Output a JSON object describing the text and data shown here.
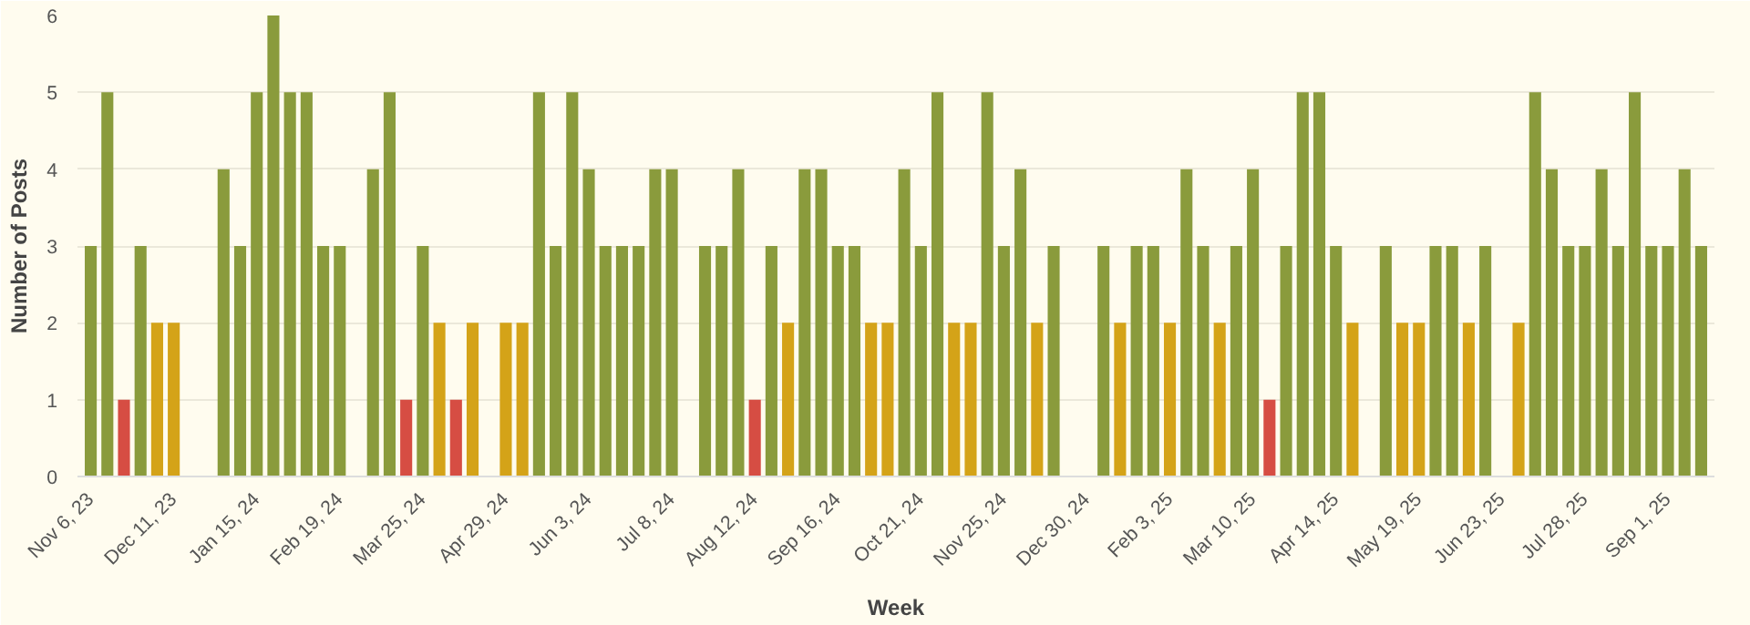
{
  "chart_data": {
    "type": "bar",
    "xlabel": "Week",
    "ylabel": "Number of Posts",
    "categories": [
      "Nov 6, 23",
      null,
      null,
      null,
      null,
      "Dec 11, 23",
      null,
      null,
      null,
      null,
      "Jan 15, 24",
      null,
      null,
      null,
      null,
      "Feb 19, 24",
      null,
      null,
      null,
      null,
      "Mar 25, 24",
      null,
      null,
      null,
      null,
      "Apr 29, 24",
      null,
      null,
      null,
      null,
      "Jun 3, 24",
      null,
      null,
      null,
      null,
      "Jul 8, 24",
      null,
      null,
      null,
      null,
      "Aug 12, 24",
      null,
      null,
      null,
      null,
      "Sep 16, 24",
      null,
      null,
      null,
      null,
      "Oct 21, 24",
      null,
      null,
      null,
      null,
      "Nov 25, 24",
      null,
      null,
      null,
      null,
      "Dec 30, 24",
      null,
      null,
      null,
      null,
      "Feb 3, 25",
      null,
      null,
      null,
      null,
      "Mar 10, 25",
      null,
      null,
      null,
      null,
      "Apr 14, 25",
      null,
      null,
      null,
      null,
      "May 19, 25",
      null,
      null,
      null,
      null,
      "Jun 23, 25",
      null,
      null,
      null,
      null,
      "Jul 28, 25",
      null,
      null,
      null,
      null,
      "Sep 1, 25",
      null,
      null
    ],
    "values": [
      3,
      5,
      1,
      3,
      2,
      2,
      null,
      null,
      4,
      3,
      5,
      6,
      5,
      5,
      3,
      3,
      null,
      4,
      5,
      1,
      3,
      2,
      1,
      2,
      null,
      2,
      2,
      5,
      3,
      5,
      4,
      3,
      3,
      3,
      4,
      4,
      null,
      3,
      3,
      4,
      1,
      3,
      2,
      4,
      4,
      3,
      3,
      2,
      2,
      4,
      3,
      5,
      2,
      2,
      5,
      3,
      4,
      2,
      3,
      null,
      null,
      3,
      2,
      3,
      3,
      2,
      4,
      3,
      2,
      3,
      4,
      1,
      3,
      5,
      5,
      3,
      2,
      null,
      3,
      2,
      2,
      3,
      3,
      2,
      3,
      null,
      2,
      5,
      4,
      3,
      3,
      4,
      3,
      5,
      3,
      3,
      4,
      3
    ],
    "colors": [
      "#8a9b3c",
      "#8a9b3c",
      "#d64d43",
      "#8a9b3c",
      "#d4a318",
      "#d4a318",
      "#8a9b3c",
      "#8a9b3c",
      "#8a9b3c",
      "#8a9b3c",
      "#8a9b3c",
      "#8a9b3c",
      "#8a9b3c",
      "#8a9b3c",
      "#8a9b3c",
      "#8a9b3c",
      "#8a9b3c",
      "#8a9b3c",
      "#8a9b3c",
      "#d64d43",
      "#8a9b3c",
      "#d4a318",
      "#d64d43",
      "#d4a318",
      "#8a9b3c",
      "#d4a318",
      "#d4a318",
      "#8a9b3c",
      "#8a9b3c",
      "#8a9b3c",
      "#8a9b3c",
      "#8a9b3c",
      "#8a9b3c",
      "#8a9b3c",
      "#8a9b3c",
      "#8a9b3c",
      "#8a9b3c",
      "#8a9b3c",
      "#8a9b3c",
      "#8a9b3c",
      "#d64d43",
      "#8a9b3c",
      "#d4a318",
      "#8a9b3c",
      "#8a9b3c",
      "#8a9b3c",
      "#8a9b3c",
      "#d4a318",
      "#d4a318",
      "#8a9b3c",
      "#8a9b3c",
      "#8a9b3c",
      "#d4a318",
      "#d4a318",
      "#8a9b3c",
      "#8a9b3c",
      "#8a9b3c",
      "#d4a318",
      "#8a9b3c",
      "#8a9b3c",
      "#8a9b3c",
      "#8a9b3c",
      "#d4a318",
      "#8a9b3c",
      "#8a9b3c",
      "#d4a318",
      "#8a9b3c",
      "#8a9b3c",
      "#d4a318",
      "#8a9b3c",
      "#8a9b3c",
      "#d64d43",
      "#8a9b3c",
      "#8a9b3c",
      "#8a9b3c",
      "#8a9b3c",
      "#d4a318",
      "#8a9b3c",
      "#8a9b3c",
      "#d4a318",
      "#d4a318",
      "#8a9b3c",
      "#8a9b3c",
      "#d4a318",
      "#8a9b3c",
      "#8a9b3c",
      "#d4a318",
      "#8a9b3c",
      "#8a9b3c",
      "#8a9b3c",
      "#8a9b3c",
      "#8a9b3c",
      "#8a9b3c",
      "#8a9b3c",
      "#8a9b3c",
      "#8a9b3c",
      "#8a9b3c",
      "#8a9b3c"
    ],
    "ylim": [
      0,
      6
    ],
    "yticks": [
      0,
      1,
      2,
      3,
      4,
      5,
      6
    ],
    "grid": "y"
  }
}
